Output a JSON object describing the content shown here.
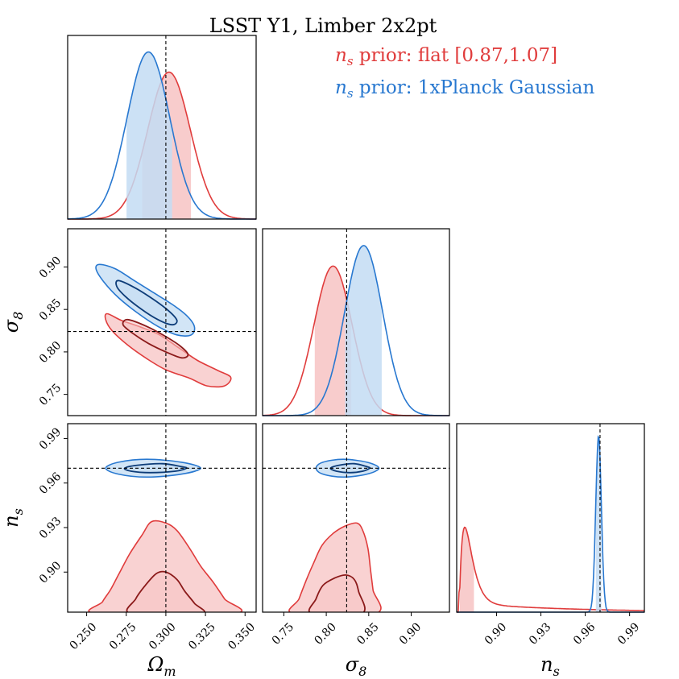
{
  "chart_data": {
    "type": "corner",
    "title": "LSST Y1, Limber 2x2pt",
    "params": [
      {
        "name": "Omega_m",
        "label": "Ω",
        "label_sub": "m",
        "range": [
          0.238,
          0.357
        ],
        "ticks": [
          0.25,
          0.275,
          0.3,
          0.325,
          0.35
        ],
        "tick_labels": [
          "0.250",
          "0.275",
          "0.300",
          "0.325",
          "0.350"
        ],
        "truth": 0.3
      },
      {
        "name": "sigma8",
        "label": "σ",
        "label_sub": "8",
        "range": [
          0.725,
          0.945
        ],
        "ticks": [
          0.75,
          0.8,
          0.85,
          0.9
        ],
        "tick_labels": [
          "0.75",
          "0.80",
          "0.85",
          "0.90"
        ],
        "truth": 0.824
      },
      {
        "name": "n_s",
        "label": "n",
        "label_sub": "s",
        "range": [
          0.873,
          1.0
        ],
        "ticks": [
          0.9,
          0.93,
          0.96,
          0.99
        ],
        "tick_labels": [
          "0.90",
          "0.93",
          "0.96",
          "0.99"
        ],
        "truth": 0.97
      }
    ],
    "series": [
      {
        "name": "flat",
        "legend_prefix": "n",
        "legend_sub": "s",
        "legend_text": " prior: flat [0.87,1.07]",
        "color": "#e03c3c",
        "dark": "#8b1a1a",
        "fill": "#f7c3c3",
        "marginals": {
          "Omega_m": {
            "type": "gauss",
            "mean": 0.302,
            "sigma": 0.0135,
            "lo": 0.285,
            "hi": 0.316
          },
          "sigma8": {
            "type": "gauss",
            "mean": 0.808,
            "sigma": 0.0225,
            "lo": 0.786,
            "hi": 0.83
          },
          "n_s": {
            "type": "skew",
            "x0": 0.875,
            "lo": 0.875,
            "hi": 0.885
          }
        },
        "contours_2d": {
          "Omega_m__sigma8": {
            "outer": [
              [
                0.263,
                0.845
              ],
              [
                0.272,
                0.837
              ],
              [
                0.283,
                0.83
              ],
              [
                0.296,
                0.82
              ],
              [
                0.308,
                0.805
              ],
              [
                0.32,
                0.79
              ],
              [
                0.333,
                0.778
              ],
              [
                0.341,
                0.77
              ],
              [
                0.337,
                0.76
              ],
              [
                0.326,
                0.76
              ],
              [
                0.315,
                0.769
              ],
              [
                0.3,
                0.779
              ],
              [
                0.288,
                0.792
              ],
              [
                0.276,
                0.808
              ],
              [
                0.266,
                0.825
              ],
              [
                0.262,
                0.838
              ]
            ],
            "inner": [
              [
                0.276,
                0.838
              ],
              [
                0.288,
                0.83
              ],
              [
                0.3,
                0.818
              ],
              [
                0.309,
                0.807
              ],
              [
                0.314,
                0.797
              ],
              [
                0.31,
                0.793
              ],
              [
                0.3,
                0.8
              ],
              [
                0.289,
                0.81
              ],
              [
                0.279,
                0.822
              ],
              [
                0.273,
                0.832
              ]
            ]
          },
          "Omega_m__n_s": {
            "outer": [
              [
                0.257,
                0.872
              ],
              [
                0.26,
                0.88
              ],
              [
                0.265,
                0.888
              ],
              [
                0.27,
                0.898
              ],
              [
                0.277,
                0.912
              ],
              [
                0.285,
                0.925
              ],
              [
                0.291,
                0.934
              ],
              [
                0.3,
                0.933
              ],
              [
                0.307,
                0.928
              ],
              [
                0.315,
                0.916
              ],
              [
                0.322,
                0.904
              ],
              [
                0.33,
                0.893
              ],
              [
                0.337,
                0.882
              ],
              [
                0.343,
                0.872
              ]
            ],
            "inner": [
              [
                0.278,
                0.872
              ],
              [
                0.281,
                0.882
              ],
              [
                0.287,
                0.891
              ],
              [
                0.294,
                0.899
              ],
              [
                0.3,
                0.9
              ],
              [
                0.307,
                0.895
              ],
              [
                0.312,
                0.887
              ],
              [
                0.318,
                0.879
              ],
              [
                0.322,
                0.872
              ]
            ]
          },
          "sigma8__n_s": {
            "outer": [
              [
                0.762,
                0.872
              ],
              [
                0.768,
                0.882
              ],
              [
                0.776,
                0.894
              ],
              [
                0.785,
                0.906
              ],
              [
                0.795,
                0.918
              ],
              [
                0.808,
                0.926
              ],
              [
                0.822,
                0.931
              ],
              [
                0.836,
                0.933
              ],
              [
                0.843,
                0.928
              ],
              [
                0.849,
                0.916
              ],
              [
                0.852,
                0.902
              ],
              [
                0.855,
                0.888
              ],
              [
                0.858,
                0.872
              ]
            ],
            "inner": [
              [
                0.783,
                0.872
              ],
              [
                0.788,
                0.882
              ],
              [
                0.796,
                0.891
              ],
              [
                0.81,
                0.896
              ],
              [
                0.823,
                0.898
              ],
              [
                0.833,
                0.895
              ],
              [
                0.838,
                0.887
              ],
              [
                0.842,
                0.872
              ]
            ]
          }
        }
      },
      {
        "name": "planck",
        "legend_prefix": "n",
        "legend_sub": "s",
        "legend_text": " prior: 1xPlanck Gaussian",
        "color": "#2878d0",
        "dark": "#0d3c78",
        "fill": "#c3dcf3",
        "marginals": {
          "Omega_m": {
            "type": "gauss",
            "mean": 0.289,
            "sigma": 0.0135,
            "lo": 0.275,
            "hi": 0.304
          },
          "sigma8": {
            "type": "gauss",
            "mean": 0.844,
            "sigma": 0.0225,
            "lo": 0.822,
            "hi": 0.866
          },
          "n_s": {
            "type": "gauss",
            "mean": 0.969,
            "sigma": 0.0019,
            "lo": 0.967,
            "hi": 0.971
          }
        },
        "contours_2d": {
          "Omega_m__sigma8": {
            "outer": [
              [
                0.258,
                0.903
              ],
              [
                0.268,
                0.898
              ],
              [
                0.28,
                0.884
              ],
              [
                0.292,
                0.87
              ],
              [
                0.304,
                0.856
              ],
              [
                0.313,
                0.843
              ],
              [
                0.318,
                0.83
              ],
              [
                0.316,
                0.82
              ],
              [
                0.307,
                0.82
              ],
              [
                0.295,
                0.83
              ],
              [
                0.282,
                0.846
              ],
              [
                0.27,
                0.864
              ],
              [
                0.261,
                0.882
              ],
              [
                0.256,
                0.897
              ]
            ],
            "inner": [
              [
                0.27,
                0.884
              ],
              [
                0.28,
                0.876
              ],
              [
                0.292,
                0.862
              ],
              [
                0.302,
                0.848
              ],
              [
                0.307,
                0.837
              ],
              [
                0.304,
                0.832
              ],
              [
                0.295,
                0.838
              ],
              [
                0.284,
                0.851
              ],
              [
                0.274,
                0.866
              ],
              [
                0.269,
                0.877
              ]
            ]
          },
          "Omega_m__n_s": {
            "outer": [
              [
                0.262,
                0.97
              ],
              [
                0.27,
                0.974
              ],
              [
                0.288,
                0.976
              ],
              [
                0.31,
                0.974
              ],
              [
                0.322,
                0.97
              ],
              [
                0.31,
                0.966
              ],
              [
                0.288,
                0.964
              ],
              [
                0.27,
                0.966
              ]
            ],
            "inner": [
              [
                0.274,
                0.97
              ],
              [
                0.282,
                0.972
              ],
              [
                0.298,
                0.973
              ],
              [
                0.31,
                0.971
              ],
              [
                0.313,
                0.97
              ],
              [
                0.306,
                0.968
              ],
              [
                0.29,
                0.967
              ],
              [
                0.278,
                0.968
              ]
            ]
          },
          "sigma8__n_s": {
            "outer": [
              [
                0.788,
                0.97
              ],
              [
                0.796,
                0.974
              ],
              [
                0.82,
                0.976
              ],
              [
                0.848,
                0.974
              ],
              [
                0.862,
                0.97
              ],
              [
                0.848,
                0.966
              ],
              [
                0.82,
                0.964
              ],
              [
                0.796,
                0.966
              ]
            ],
            "inner": [
              [
                0.805,
                0.97
              ],
              [
                0.815,
                0.972
              ],
              [
                0.833,
                0.973
              ],
              [
                0.848,
                0.971
              ],
              [
                0.851,
                0.97
              ],
              [
                0.843,
                0.968
              ],
              [
                0.828,
                0.967
              ],
              [
                0.812,
                0.968
              ]
            ]
          }
        }
      }
    ]
  }
}
